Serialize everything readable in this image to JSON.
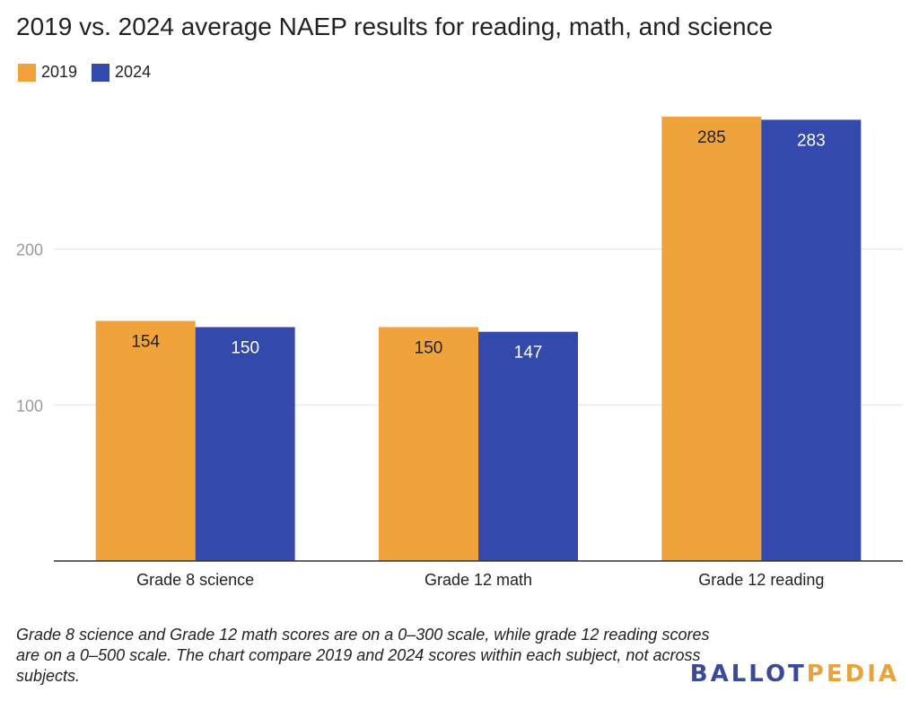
{
  "chart_data": {
    "type": "bar",
    "title": "2019 vs. 2024 average NAEP results for reading, math, and science",
    "categories": [
      "Grade 8 science",
      "Grade 12 math",
      "Grade 12 reading"
    ],
    "series": [
      {
        "name": "2019",
        "color": "#f0a33a",
        "values": [
          154,
          150,
          285
        ]
      },
      {
        "name": "2024",
        "color": "#3349ab",
        "values": [
          150,
          147,
          283
        ]
      }
    ],
    "yticks": [
      100,
      200
    ],
    "ylim": [
      0,
      300
    ],
    "grid": true,
    "legend": "top-left"
  },
  "note": "Grade 8 science and Grade 12 math scores are on a 0–300 scale, while grade 12 reading scores are on a 0–500 scale. The chart compare 2019 and 2024 scores within each subject, not across subjects.",
  "brand": {
    "part1": "BALLOT",
    "part2": "PEDIA"
  }
}
